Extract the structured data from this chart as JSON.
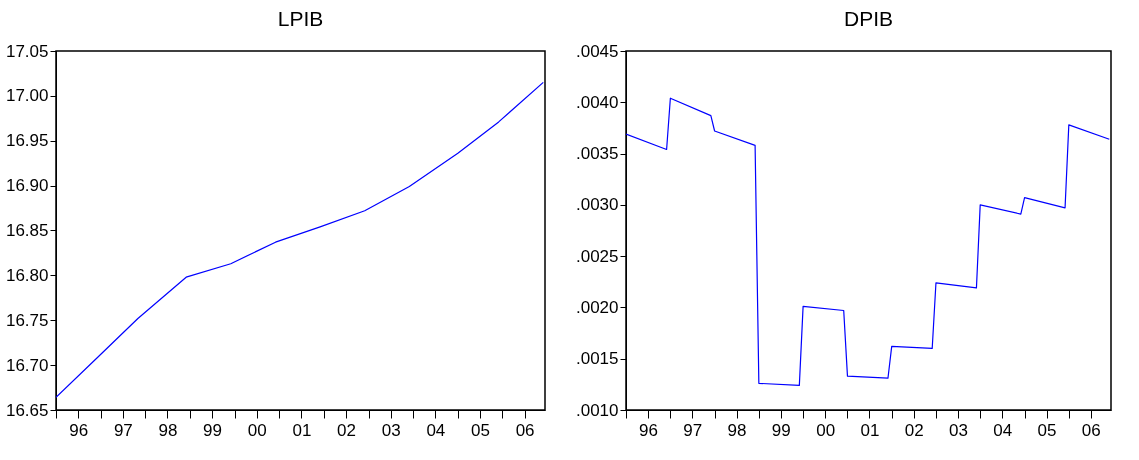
{
  "chart_data": [
    {
      "type": "line",
      "title": "LPIB",
      "x": [
        "1996-01",
        "1996-12",
        "1997-11",
        "1998-12",
        "1999-12",
        "2000-12",
        "2001-12",
        "2002-12",
        "2003-12",
        "2005-01",
        "2005-12",
        "2006-12"
      ],
      "series": [
        {
          "color": "#0000ff",
          "values": [
            16.664,
            16.708,
            16.752,
            16.798,
            16.813,
            16.837,
            16.854,
            16.872,
            16.899,
            16.936,
            16.971,
            17.015
          ]
        }
      ],
      "xlim": [
        "1996-01-01",
        "2006-12-15"
      ],
      "xticks": [
        {
          "value": "1996-01",
          "label": null
        },
        {
          "value": "1996-07",
          "label": "96"
        },
        {
          "value": "1997-01",
          "label": null
        },
        {
          "value": "1997-07",
          "label": "97"
        },
        {
          "value": "1998-01",
          "label": null
        },
        {
          "value": "1998-07",
          "label": "98"
        },
        {
          "value": "1999-01",
          "label": null
        },
        {
          "value": "1999-07",
          "label": "99"
        },
        {
          "value": "2000-01",
          "label": null
        },
        {
          "value": "2000-07",
          "label": "00"
        },
        {
          "value": "2001-01",
          "label": null
        },
        {
          "value": "2001-07",
          "label": "01"
        },
        {
          "value": "2002-01",
          "label": null
        },
        {
          "value": "2002-07",
          "label": "02"
        },
        {
          "value": "2003-01",
          "label": null
        },
        {
          "value": "2003-07",
          "label": "03"
        },
        {
          "value": "2004-01",
          "label": null
        },
        {
          "value": "2004-07",
          "label": "04"
        },
        {
          "value": "2005-01",
          "label": null
        },
        {
          "value": "2005-07",
          "label": "05"
        },
        {
          "value": "2006-01",
          "label": null
        },
        {
          "value": "2006-07",
          "label": "06"
        }
      ],
      "ylim": [
        16.65,
        17.05
      ],
      "yticks": [
        {
          "value": 16.65,
          "label": "16.65"
        },
        {
          "value": 16.7,
          "label": "16.70"
        },
        {
          "value": 16.75,
          "label": "16.75"
        },
        {
          "value": 16.8,
          "label": "16.80"
        },
        {
          "value": 16.85,
          "label": "16.85"
        },
        {
          "value": 16.9,
          "label": "16.90"
        },
        {
          "value": 16.95,
          "label": "16.95"
        },
        {
          "value": 17.0,
          "label": "17.00"
        },
        {
          "value": 17.05,
          "label": "17.05"
        }
      ]
    },
    {
      "type": "line",
      "title": "DPIB",
      "x": [
        "1996-01",
        "1996-12",
        "1997-01",
        "1997-12",
        "1998-01",
        "1998-12",
        "1999-01",
        "1999-12",
        "2000-01",
        "2000-12",
        "2001-01",
        "2001-12",
        "2002-01",
        "2002-12",
        "2003-01",
        "2003-12",
        "2004-01",
        "2004-12",
        "2005-01",
        "2005-12",
        "2006-01",
        "2006-12"
      ],
      "series": [
        {
          "color": "#0000ff",
          "values": [
            0.00369,
            0.00354,
            0.00404,
            0.00387,
            0.00372,
            0.00358,
            0.00126,
            0.00124,
            0.00201,
            0.00197,
            0.00133,
            0.00131,
            0.00162,
            0.0016,
            0.00224,
            0.00219,
            0.003,
            0.00291,
            0.00307,
            0.00297,
            0.00378,
            0.00364
          ]
        }
      ],
      "xlim": [
        "1996-01-01",
        "2006-12-15"
      ],
      "xticks": [
        {
          "value": "1996-01",
          "label": null
        },
        {
          "value": "1996-07",
          "label": "96"
        },
        {
          "value": "1997-01",
          "label": null
        },
        {
          "value": "1997-07",
          "label": "97"
        },
        {
          "value": "1998-01",
          "label": null
        },
        {
          "value": "1998-07",
          "label": "98"
        },
        {
          "value": "1999-01",
          "label": null
        },
        {
          "value": "1999-07",
          "label": "99"
        },
        {
          "value": "2000-01",
          "label": null
        },
        {
          "value": "2000-07",
          "label": "00"
        },
        {
          "value": "2001-01",
          "label": null
        },
        {
          "value": "2001-07",
          "label": "01"
        },
        {
          "value": "2002-01",
          "label": null
        },
        {
          "value": "2002-07",
          "label": "02"
        },
        {
          "value": "2003-01",
          "label": null
        },
        {
          "value": "2003-07",
          "label": "03"
        },
        {
          "value": "2004-01",
          "label": null
        },
        {
          "value": "2004-07",
          "label": "04"
        },
        {
          "value": "2005-01",
          "label": null
        },
        {
          "value": "2005-07",
          "label": "05"
        },
        {
          "value": "2006-01",
          "label": null
        },
        {
          "value": "2006-07",
          "label": "06"
        }
      ],
      "ylim": [
        0.001,
        0.0045
      ],
      "yticks": [
        {
          "value": 0.001,
          "label": ".0010"
        },
        {
          "value": 0.0015,
          "label": ".0015"
        },
        {
          "value": 0.002,
          "label": ".0020"
        },
        {
          "value": 0.0025,
          "label": ".0025"
        },
        {
          "value": 0.003,
          "label": ".0030"
        },
        {
          "value": 0.0035,
          "label": ".0035"
        },
        {
          "value": 0.004,
          "label": ".0040"
        },
        {
          "value": 0.0045,
          "label": ".0045"
        }
      ]
    }
  ]
}
